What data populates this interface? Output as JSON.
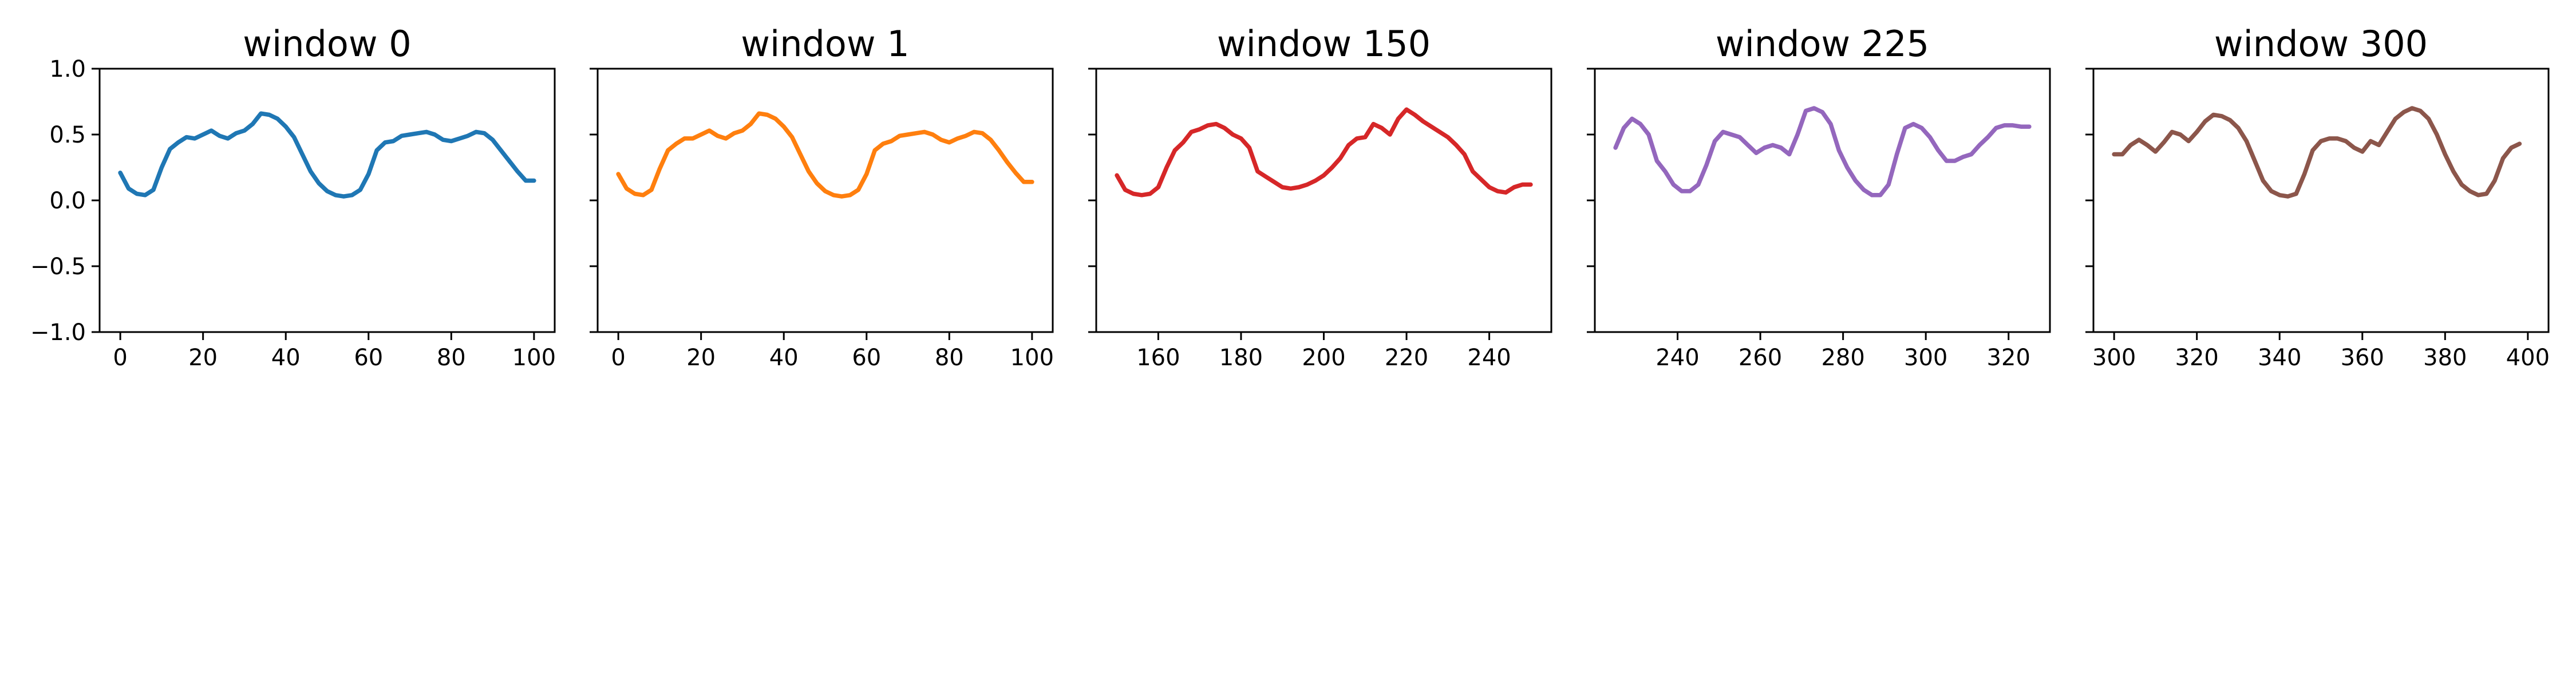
{
  "chart_data": [
    {
      "type": "line",
      "title": "window 0",
      "xlabel": "",
      "ylabel": "",
      "xlim": [
        -5,
        105
      ],
      "ylim": [
        -1.0,
        1.0
      ],
      "xticks": [
        0,
        20,
        40,
        60,
        80,
        100
      ],
      "yticks": [
        -1.0,
        -0.5,
        0.0,
        0.5,
        1.0
      ],
      "ytick_labels": [
        "−1.0",
        "−0.5",
        "0.0",
        "0.5",
        "1.0"
      ],
      "show_ytick_labels": true,
      "color": "#1f77b4",
      "x": [
        0,
        2,
        4,
        6,
        8,
        10,
        12,
        14,
        16,
        18,
        20,
        22,
        24,
        26,
        28,
        30,
        32,
        34,
        36,
        38,
        40,
        42,
        44,
        46,
        48,
        50,
        52,
        54,
        56,
        58,
        60,
        62,
        64,
        66,
        68,
        70,
        72,
        74,
        76,
        78,
        80,
        82,
        84,
        86,
        88,
        90,
        92,
        94,
        96,
        98,
        100
      ],
      "y": [
        0.21,
        0.09,
        0.05,
        0.04,
        0.08,
        0.25,
        0.39,
        0.44,
        0.48,
        0.47,
        0.5,
        0.53,
        0.49,
        0.47,
        0.51,
        0.53,
        0.58,
        0.66,
        0.65,
        0.62,
        0.56,
        0.48,
        0.35,
        0.22,
        0.13,
        0.07,
        0.04,
        0.03,
        0.04,
        0.08,
        0.2,
        0.38,
        0.44,
        0.45,
        0.49,
        0.5,
        0.51,
        0.52,
        0.5,
        0.46,
        0.45,
        0.47,
        0.49,
        0.52,
        0.51,
        0.46,
        0.38,
        0.3,
        0.22,
        0.15,
        0.15
      ]
    },
    {
      "type": "line",
      "title": "window 1",
      "xlabel": "",
      "ylabel": "",
      "xlim": [
        -5,
        105
      ],
      "ylim": [
        -1.0,
        1.0
      ],
      "xticks": [
        0,
        20,
        40,
        60,
        80,
        100
      ],
      "yticks": [
        -1.0,
        -0.5,
        0.0,
        0.5,
        1.0
      ],
      "ytick_labels": [
        "−1.0",
        "−0.5",
        "0.0",
        "0.5",
        "1.0"
      ],
      "show_ytick_labels": false,
      "color": "#ff7f0e",
      "x": [
        0,
        2,
        4,
        6,
        8,
        10,
        12,
        14,
        16,
        18,
        20,
        22,
        24,
        26,
        28,
        30,
        32,
        34,
        36,
        38,
        40,
        42,
        44,
        46,
        48,
        50,
        52,
        54,
        56,
        58,
        60,
        62,
        64,
        66,
        68,
        70,
        72,
        74,
        76,
        78,
        80,
        82,
        84,
        86,
        88,
        90,
        92,
        94,
        96,
        98,
        100
      ],
      "y": [
        0.2,
        0.09,
        0.05,
        0.04,
        0.08,
        0.24,
        0.38,
        0.43,
        0.47,
        0.47,
        0.5,
        0.53,
        0.49,
        0.47,
        0.51,
        0.53,
        0.58,
        0.66,
        0.65,
        0.62,
        0.56,
        0.48,
        0.35,
        0.22,
        0.13,
        0.07,
        0.04,
        0.03,
        0.04,
        0.08,
        0.2,
        0.38,
        0.43,
        0.45,
        0.49,
        0.5,
        0.51,
        0.52,
        0.5,
        0.46,
        0.44,
        0.47,
        0.49,
        0.52,
        0.51,
        0.46,
        0.38,
        0.29,
        0.21,
        0.14,
        0.14
      ]
    },
    {
      "type": "line",
      "title": "window 150",
      "xlabel": "",
      "ylabel": "",
      "xlim": [
        145,
        255
      ],
      "ylim": [
        -1.0,
        1.0
      ],
      "xticks": [
        160,
        180,
        200,
        220,
        240
      ],
      "yticks": [
        -1.0,
        -0.5,
        0.0,
        0.5,
        1.0
      ],
      "ytick_labels": [
        "−1.0",
        "−0.5",
        "0.0",
        "0.5",
        "1.0"
      ],
      "show_ytick_labels": false,
      "color": "#d62728",
      "x": [
        150,
        152,
        154,
        156,
        158,
        160,
        162,
        164,
        166,
        168,
        170,
        172,
        174,
        176,
        178,
        180,
        182,
        184,
        186,
        188,
        190,
        192,
        194,
        196,
        198,
        200,
        202,
        204,
        206,
        208,
        210,
        212,
        214,
        216,
        218,
        220,
        222,
        224,
        226,
        228,
        230,
        232,
        234,
        236,
        238,
        240,
        242,
        244,
        246,
        248,
        250
      ],
      "y": [
        0.19,
        0.08,
        0.05,
        0.04,
        0.05,
        0.1,
        0.25,
        0.38,
        0.44,
        0.52,
        0.54,
        0.57,
        0.58,
        0.55,
        0.5,
        0.47,
        0.4,
        0.22,
        0.18,
        0.14,
        0.1,
        0.09,
        0.1,
        0.12,
        0.15,
        0.19,
        0.25,
        0.32,
        0.42,
        0.47,
        0.48,
        0.58,
        0.55,
        0.5,
        0.62,
        0.69,
        0.65,
        0.6,
        0.56,
        0.52,
        0.48,
        0.42,
        0.35,
        0.22,
        0.16,
        0.1,
        0.07,
        0.06,
        0.1,
        0.12,
        0.12
      ]
    },
    {
      "type": "line",
      "title": "window 225",
      "xlabel": "",
      "ylabel": "",
      "xlim": [
        220,
        330
      ],
      "ylim": [
        -1.0,
        1.0
      ],
      "xticks": [
        240,
        260,
        280,
        300,
        320
      ],
      "yticks": [
        -1.0,
        -0.5,
        0.0,
        0.5,
        1.0
      ],
      "ytick_labels": [
        "−1.0",
        "−0.5",
        "0.0",
        "0.5",
        "1.0"
      ],
      "show_ytick_labels": false,
      "color": "#9467bd",
      "x": [
        225,
        227,
        229,
        231,
        233,
        235,
        237,
        239,
        241,
        243,
        245,
        247,
        249,
        251,
        253,
        255,
        257,
        259,
        261,
        263,
        265,
        267,
        269,
        271,
        273,
        275,
        277,
        279,
        281,
        283,
        285,
        287,
        289,
        291,
        293,
        295,
        297,
        299,
        301,
        303,
        305,
        307,
        309,
        311,
        313,
        315,
        317,
        319,
        321,
        323,
        325
      ],
      "y": [
        0.4,
        0.55,
        0.62,
        0.58,
        0.5,
        0.3,
        0.22,
        0.12,
        0.07,
        0.07,
        0.12,
        0.27,
        0.45,
        0.52,
        0.5,
        0.48,
        0.42,
        0.36,
        0.4,
        0.42,
        0.4,
        0.35,
        0.5,
        0.68,
        0.7,
        0.67,
        0.58,
        0.38,
        0.25,
        0.15,
        0.08,
        0.04,
        0.04,
        0.12,
        0.35,
        0.55,
        0.58,
        0.55,
        0.48,
        0.38,
        0.3,
        0.3,
        0.33,
        0.35,
        0.42,
        0.48,
        0.55,
        0.57,
        0.57,
        0.56,
        0.56
      ]
    },
    {
      "type": "line",
      "title": "window 300",
      "xlabel": "",
      "ylabel": "",
      "xlim": [
        295,
        405
      ],
      "ylim": [
        -1.0,
        1.0
      ],
      "xticks": [
        300,
        320,
        340,
        360,
        380,
        400
      ],
      "yticks": [
        -1.0,
        -0.5,
        0.0,
        0.5,
        1.0
      ],
      "ytick_labels": [
        "−1.0",
        "−0.5",
        "0.0",
        "0.5",
        "1.0"
      ],
      "show_ytick_labels": false,
      "color": "#8c564b",
      "x": [
        300,
        302,
        304,
        306,
        308,
        310,
        312,
        314,
        316,
        318,
        320,
        322,
        324,
        326,
        328,
        330,
        332,
        334,
        336,
        338,
        340,
        342,
        344,
        346,
        348,
        350,
        352,
        354,
        356,
        358,
        360,
        362,
        364,
        366,
        368,
        370,
        372,
        374,
        376,
        378,
        380,
        382,
        384,
        386,
        388,
        390,
        392,
        394,
        396,
        398
      ],
      "y": [
        0.35,
        0.35,
        0.42,
        0.46,
        0.42,
        0.37,
        0.44,
        0.52,
        0.5,
        0.45,
        0.52,
        0.6,
        0.65,
        0.64,
        0.61,
        0.55,
        0.45,
        0.3,
        0.15,
        0.07,
        0.04,
        0.03,
        0.05,
        0.2,
        0.38,
        0.45,
        0.47,
        0.47,
        0.45,
        0.4,
        0.37,
        0.45,
        0.42,
        0.52,
        0.62,
        0.67,
        0.7,
        0.68,
        0.62,
        0.5,
        0.35,
        0.22,
        0.12,
        0.07,
        0.04,
        0.05,
        0.15,
        0.32,
        0.4,
        0.43
      ]
    }
  ]
}
